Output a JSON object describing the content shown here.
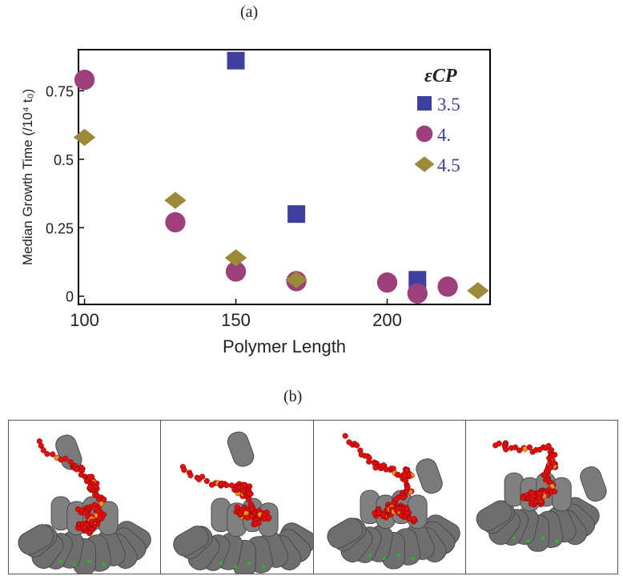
{
  "figure": {
    "label_a": "(a)",
    "label_b": "(b)"
  },
  "chart_data": {
    "type": "scatter",
    "xlabel": "Polymer Length",
    "ylabel": "Median Growth Time (/10⁴ t₀)",
    "xlim": [
      98,
      234
    ],
    "ylim": [
      -0.03,
      0.9
    ],
    "xticks": [
      100,
      150,
      200
    ],
    "yticks": [
      0,
      0.25,
      0.5,
      0.75
    ],
    "ytick_labels": [
      "0",
      "0.25",
      "0.5",
      "0.75"
    ],
    "grid": false,
    "legend": {
      "title": "εCP",
      "placement": "top-right"
    },
    "series": [
      {
        "name": "3.5",
        "marker": "square",
        "color": "#3f3f9f",
        "x": [
          150,
          170,
          210
        ],
        "y": [
          0.86,
          0.3,
          0.06
        ]
      },
      {
        "name": "4.",
        "marker": "circle",
        "color": "#9c3f7a",
        "x": [
          100,
          130,
          150,
          170,
          200,
          210,
          220
        ],
        "y": [
          0.79,
          0.27,
          0.09,
          0.055,
          0.05,
          0.01,
          0.035
        ]
      },
      {
        "name": "4.5",
        "marker": "diamond",
        "color": "#9a8a3a",
        "x": [
          100,
          130,
          150,
          170,
          230
        ],
        "y": [
          0.58,
          0.35,
          0.14,
          0.06,
          0.02
        ]
      }
    ]
  },
  "snapshots": {
    "count": 4,
    "colors": {
      "capsomer": "#6e6e6e",
      "polymer": "#e01010",
      "highlight": "#f09020",
      "accent": "#20c020"
    }
  }
}
